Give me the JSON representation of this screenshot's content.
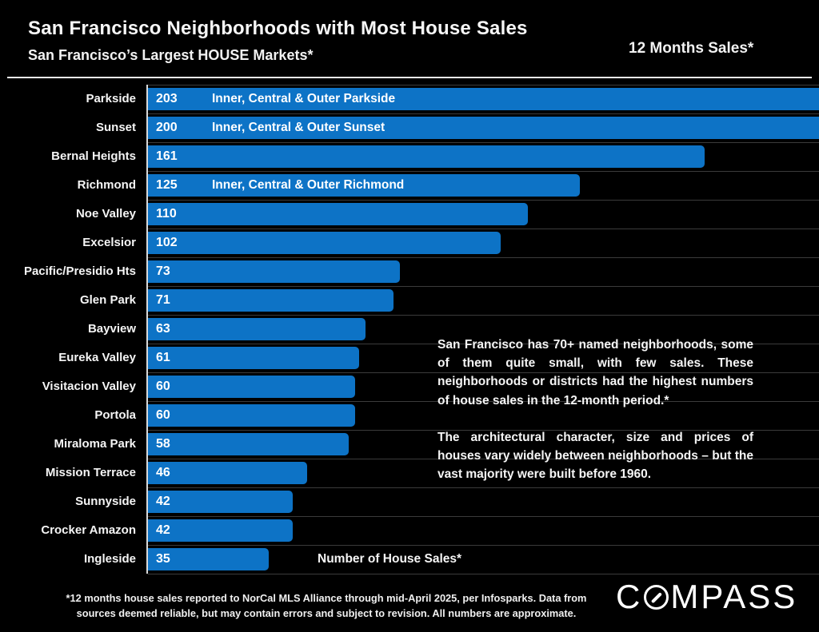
{
  "header": {
    "title": "San Francisco Neighborhoods with Most House Sales",
    "subtitle": "San Francisco’s Largest HOUSE Markets*",
    "period_label": "12 Months Sales*"
  },
  "chart_data": {
    "type": "bar",
    "orientation": "horizontal",
    "title": "San Francisco Neighborhoods with Most House Sales",
    "categories": [
      "Parkside",
      "Sunset",
      "Bernal Heights",
      "Richmond",
      "Noe Valley",
      "Excelsior",
      "Pacific/Presidio Hts",
      "Glen Park",
      "Bayview",
      "Eureka Valley",
      "Visitacion Valley",
      "Portola",
      "Miraloma Park",
      "Mission Terrace",
      "Sunnyside",
      "Crocker Amazon",
      "Ingleside"
    ],
    "values": [
      203,
      200,
      161,
      125,
      110,
      102,
      73,
      71,
      63,
      61,
      60,
      60,
      58,
      46,
      42,
      42,
      35
    ],
    "bar_notes": [
      "Inner, Central & Outer Parkside",
      "Inner, Central & Outer Sunset",
      "",
      "Inner, Central & Outer Richmond",
      "",
      "",
      "",
      "",
      "",
      "",
      "",
      "",
      "",
      "",
      "",
      "",
      ""
    ],
    "xlabel": "Number of House Sales*",
    "ylabel": "",
    "xlim_visible": [
      0,
      194
    ],
    "value_labels": "inside-left",
    "grid": "row-separator lines, dark gray",
    "legend": "none",
    "bar_color": "#0d73c6",
    "background_color": "#000000",
    "note": "Top two bars (203 and 200) are clipped at the right edge of the visible area"
  },
  "annotation": {
    "paragraphs": [
      "San Francisco has 70+ named neighborhoods, some of them quite small, with few sales. These neighborhoods or districts had the highest numbers of house sales in the 12-month period.*",
      "The architectural character, size and prices of houses vary widely between neighborhoods – but the vast majority were built before 1960."
    ]
  },
  "footer": {
    "line1": "*12 months house sales reported to NorCal MLS Alliance through mid-April 2025, per Infosparks. Data from",
    "line2": "sources deemed reliable, but may contain errors and subject to revision. All numbers are approximate."
  },
  "logo": {
    "name": "COMPASS",
    "prefix": "C",
    "suffix": "MPASS"
  }
}
